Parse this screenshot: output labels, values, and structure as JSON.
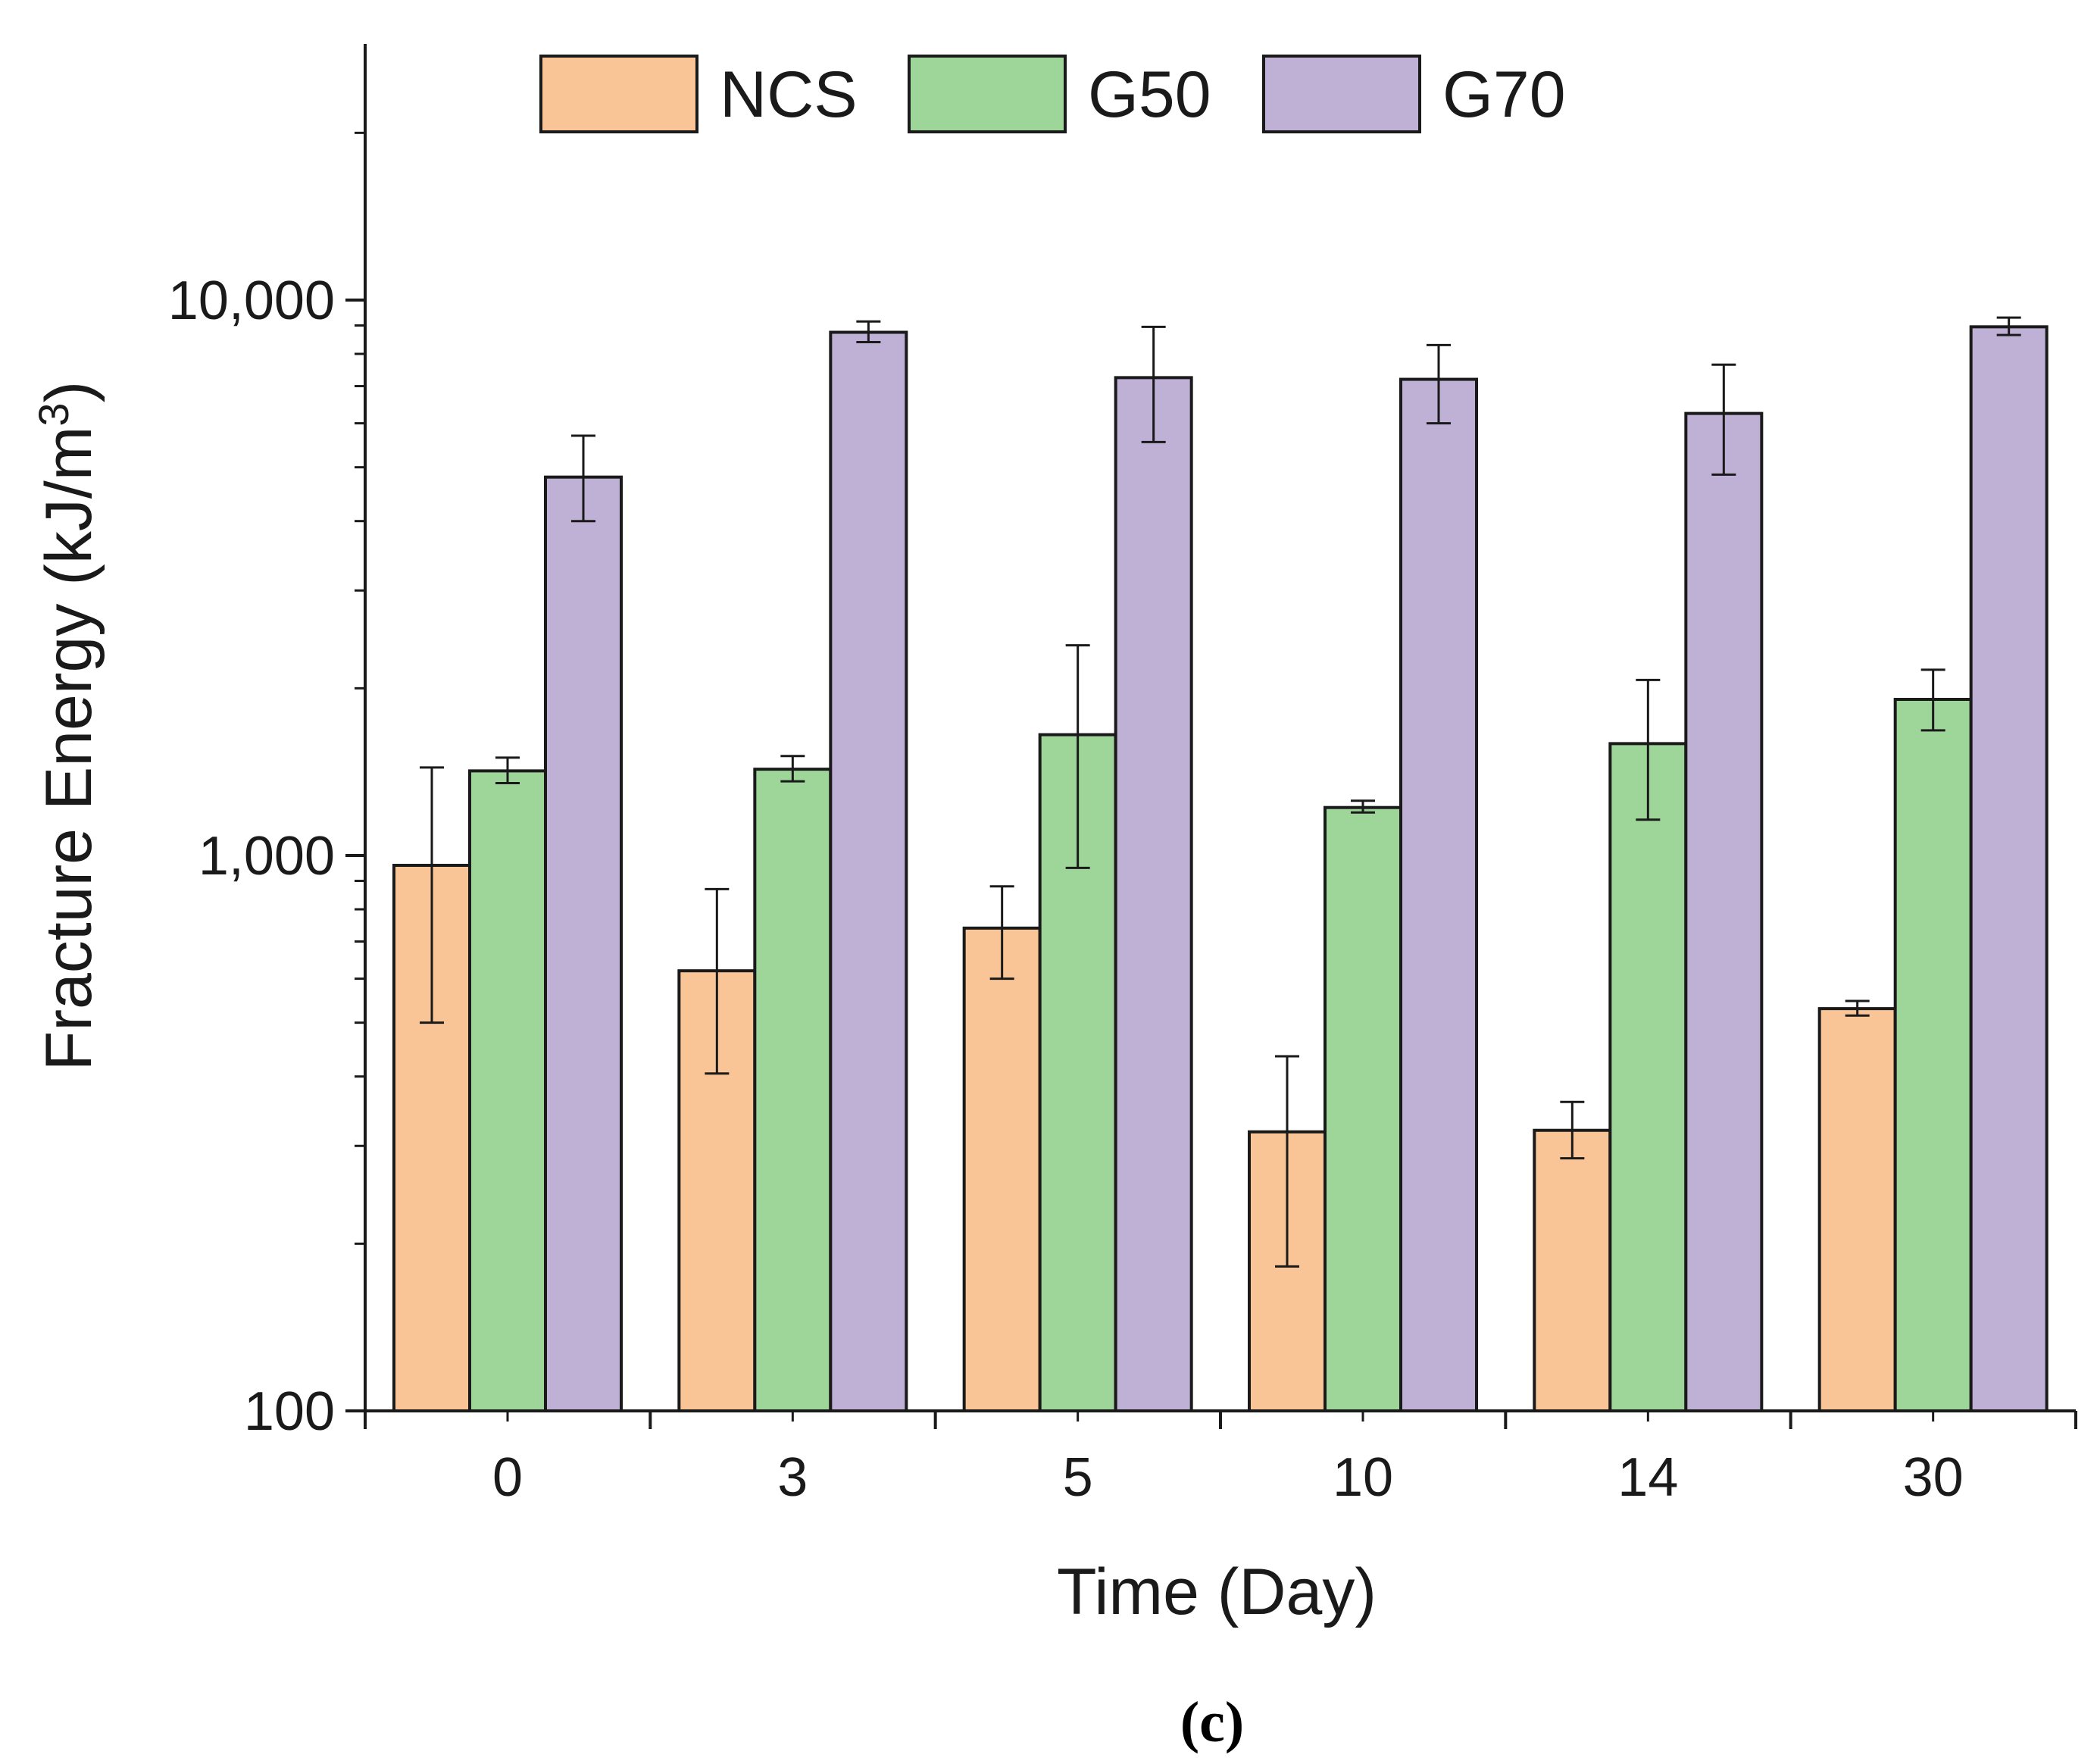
{
  "chart_data": {
    "type": "bar",
    "title": "",
    "xlabel": "Time (Day)",
    "ylabel": "Fracture Energy (kJ/m",
    "ylabel_superscript": "3",
    "ylabel_close": ")",
    "yscale": "log",
    "ylim": [
      100,
      30000
    ],
    "y_ticks": [
      100,
      1000,
      10000
    ],
    "y_tick_labels": [
      "100",
      "1,000",
      "10,000"
    ],
    "categories": [
      "0",
      "3",
      "5",
      "10",
      "14",
      "30"
    ],
    "legend_position": "top",
    "series": [
      {
        "name": "NCS",
        "color": "#F9C597",
        "values": [
          960,
          620,
          740,
          318,
          320,
          530
        ],
        "errors": [
          [
            500,
            1440
          ],
          [
            405,
            870
          ],
          [
            600,
            880
          ],
          [
            182,
            435
          ],
          [
            285,
            360
          ],
          [
            515,
            547
          ]
        ]
      },
      {
        "name": "G50",
        "color": "#9ED69A",
        "values": [
          1420,
          1430,
          1650,
          1220,
          1590,
          1910
        ],
        "errors": [
          [
            1350,
            1500
          ],
          [
            1360,
            1510
          ],
          [
            950,
            2390
          ],
          [
            1195,
            1255
          ],
          [
            1160,
            2070
          ],
          [
            1680,
            2160
          ]
        ]
      },
      {
        "name": "G70",
        "color": "#BFB0D6",
        "values": [
          4800,
          8750,
          7250,
          7200,
          6250,
          8950
        ],
        "errors": [
          [
            4000,
            5700
          ],
          [
            8400,
            9150
          ],
          [
            5550,
            8950
          ],
          [
            6000,
            8300
          ],
          [
            4850,
            7650
          ],
          [
            8650,
            9300
          ]
        ]
      }
    ]
  },
  "panel_label": "(c)"
}
